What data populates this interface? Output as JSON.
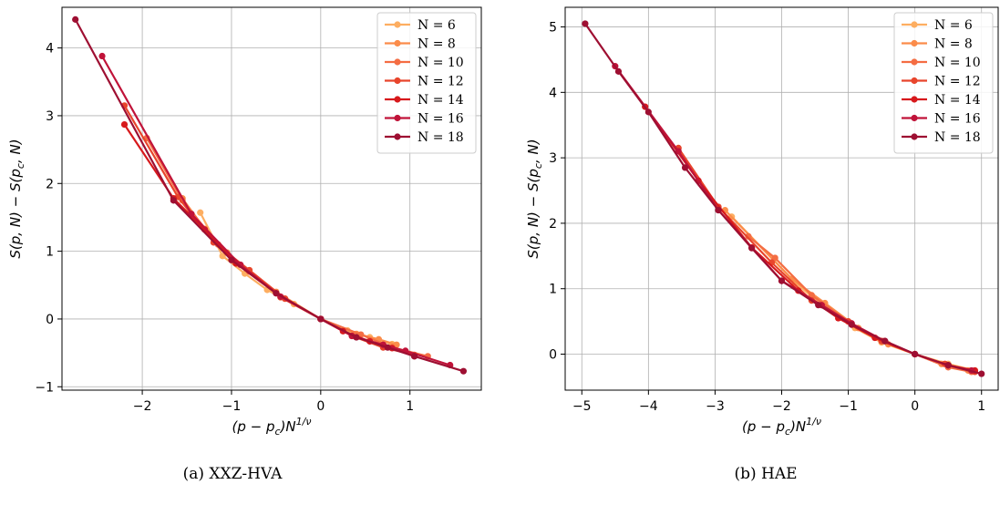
{
  "chart_data": [
    {
      "type": "line",
      "caption": "(a)  XXZ-HVA",
      "xlabel": "(p − p",
      "xlabel_sub": "c",
      "xlabel_close": ")N",
      "xlabel_sup": "1/ν",
      "ylabel": "S(p, N) − S(p",
      "ylabel_sub": "c",
      "ylabel_close": ", N)",
      "xlim": [
        -2.9,
        1.8
      ],
      "ylim": [
        -1.05,
        4.6
      ],
      "xticks": [
        -2,
        -1,
        0,
        1
      ],
      "yticks": [
        -1,
        0,
        1,
        2,
        3,
        4
      ],
      "xtick_labels": [
        "−2",
        "−1",
        "0",
        "1"
      ],
      "ytick_labels": [
        "−1",
        "0",
        "1",
        "2",
        "3",
        "4"
      ],
      "grid": true,
      "legend_position": "top-right",
      "series": [
        {
          "name": "N = 6",
          "color": "#fdae61",
          "x": [
            -1.35,
            -1.1,
            -0.85,
            -0.6,
            -0.3,
            0,
            0.3,
            0.55,
            0.8
          ],
          "y": [
            1.57,
            0.93,
            0.67,
            0.43,
            0.22,
            0,
            -0.17,
            -0.27,
            -0.37
          ]
        },
        {
          "name": "N = 8",
          "color": "#fb8c4a",
          "x": [
            -1.55,
            -1.3,
            -1.05,
            -0.8,
            -0.5,
            0,
            0.4,
            0.65,
            0.85
          ],
          "y": [
            1.78,
            1.33,
            0.98,
            0.72,
            0.4,
            0,
            -0.22,
            -0.3,
            -0.38
          ]
        },
        {
          "name": "N = 10",
          "color": "#f46d43",
          "x": [
            -1.95,
            -1.55,
            -1.15,
            -0.8,
            -0.45,
            0,
            0.45,
            0.8,
            1.2
          ],
          "y": [
            2.67,
            1.75,
            1.1,
            0.7,
            0.32,
            0,
            -0.23,
            -0.42,
            -0.55
          ]
        },
        {
          "name": "N = 12",
          "color": "#e8452c",
          "x": [
            -2.2,
            -1.6,
            -1.2,
            -0.8,
            -0.4,
            0,
            0.35,
            0.7,
            1.05
          ],
          "y": [
            3.15,
            1.8,
            1.13,
            0.72,
            0.3,
            0,
            -0.25,
            -0.42,
            -0.53
          ]
        },
        {
          "name": "N = 14",
          "color": "#d7191c",
          "x": [
            -2.2,
            -1.65,
            -1.3,
            -0.95,
            -0.5,
            0,
            0.25,
            0.55,
            0.8,
            1.05
          ],
          "y": [
            2.87,
            1.78,
            1.32,
            0.82,
            0.38,
            0,
            -0.18,
            -0.33,
            -0.43,
            -0.55
          ]
        },
        {
          "name": "N = 16",
          "color": "#c01339",
          "x": [
            -2.45,
            -1.45,
            -0.9,
            -0.45,
            0,
            0.35,
            0.7,
            0.95,
            1.45
          ],
          "y": [
            3.88,
            1.55,
            0.8,
            0.33,
            0,
            -0.25,
            -0.38,
            -0.47,
            -0.68
          ]
        },
        {
          "name": "N = 18",
          "color": "#9e0f32",
          "x": [
            -2.75,
            -1.65,
            -1.0,
            -0.5,
            0,
            0.4,
            0.75,
            1.05,
            1.6
          ],
          "y": [
            4.42,
            1.75,
            0.87,
            0.38,
            0,
            -0.27,
            -0.42,
            -0.55,
            -0.77
          ]
        }
      ]
    },
    {
      "type": "line",
      "caption": "(b)  HAE",
      "xlabel": "(p − p",
      "xlabel_sub": "c",
      "xlabel_close": ")N",
      "xlabel_sup": "1/ν",
      "ylabel": "S(p, N) − S(p",
      "ylabel_sub": "c",
      "ylabel_close": ", N)",
      "xlim": [
        -5.25,
        1.25
      ],
      "ylim": [
        -0.55,
        5.3
      ],
      "xticks": [
        -5,
        -4,
        -3,
        -2,
        -1,
        0,
        1
      ],
      "yticks": [
        0,
        1,
        2,
        3,
        4,
        5
      ],
      "xtick_labels": [
        "−5",
        "−4",
        "−3",
        "−2",
        "−1",
        "0",
        "1"
      ],
      "ytick_labels": [
        "0",
        "1",
        "2",
        "3",
        "4",
        "5"
      ],
      "grid": true,
      "legend_position": "top-right",
      "series": [
        {
          "name": "N = 6",
          "color": "#fdae61",
          "x": [
            -2.75,
            -1.8,
            -1.4,
            -0.9,
            -0.5,
            0,
            0.5,
            0.9
          ],
          "y": [
            2.1,
            1.1,
            0.75,
            0.4,
            0.18,
            0,
            -0.15,
            -0.25
          ]
        },
        {
          "name": "N = 8",
          "color": "#fb8c4a",
          "x": [
            -2.85,
            -1.85,
            -1.35,
            -0.85,
            -0.4,
            0,
            0.4,
            0.8
          ],
          "y": [
            2.2,
            1.15,
            0.78,
            0.4,
            0.15,
            0,
            -0.15,
            -0.25
          ]
        },
        {
          "name": "N = 10",
          "color": "#f46d43",
          "x": [
            -2.5,
            -2.1,
            -1.55,
            -1.0,
            -0.5,
            0,
            0.5,
            0.85
          ],
          "y": [
            1.8,
            1.47,
            0.9,
            0.5,
            0.2,
            0,
            -0.2,
            -0.27
          ]
        },
        {
          "name": "N = 12",
          "color": "#e8452c",
          "x": [
            -3.55,
            -2.95,
            -2.15,
            -1.55,
            -1.0,
            -0.5,
            0,
            0.45,
            0.9
          ],
          "y": [
            3.15,
            2.25,
            1.4,
            0.82,
            0.5,
            0.2,
            0,
            -0.15,
            -0.27
          ]
        },
        {
          "name": "N = 14",
          "color": "#d7191c",
          "x": [
            -4.05,
            -3.25,
            -2.45,
            -1.75,
            -1.15,
            -0.6,
            0,
            0.5,
            0.9
          ],
          "y": [
            3.78,
            2.65,
            1.63,
            0.97,
            0.55,
            0.25,
            0,
            -0.17,
            -0.25
          ]
        },
        {
          "name": "N = 16",
          "color": "#c01339",
          "x": [
            -4.5,
            -3.55,
            -2.95,
            -2.0,
            -1.4,
            -0.95,
            -0.45,
            0,
            0.5,
            0.85
          ],
          "y": [
            4.4,
            3.1,
            2.2,
            1.12,
            0.75,
            0.47,
            0.2,
            0,
            -0.17,
            -0.25
          ]
        },
        {
          "name": "N = 18",
          "color": "#9e0f32",
          "x": [
            -4.95,
            -4.45,
            -4.0,
            -3.45,
            -2.95,
            -2.45,
            -2.0,
            -1.45,
            -0.95,
            -0.45,
            0,
            0.5,
            1.0
          ],
          "y": [
            5.05,
            4.32,
            3.7,
            2.85,
            2.2,
            1.62,
            1.12,
            0.75,
            0.45,
            0.2,
            0,
            -0.17,
            -0.3
          ]
        }
      ]
    }
  ]
}
